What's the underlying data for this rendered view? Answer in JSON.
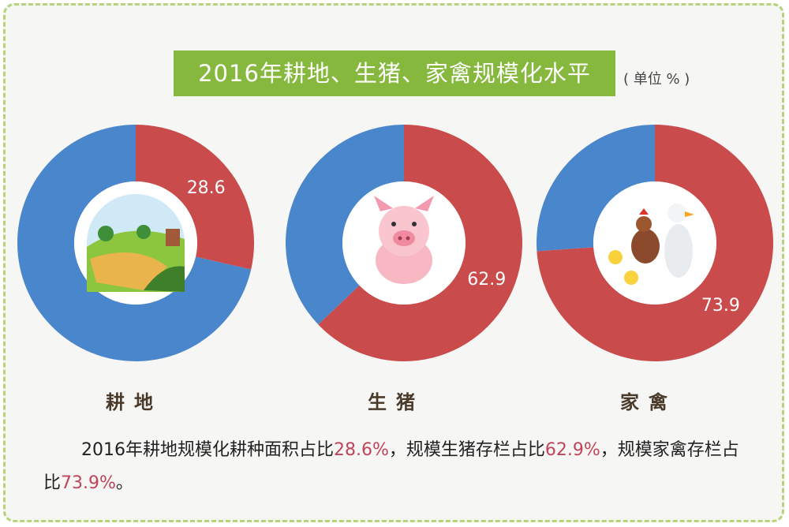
{
  "title": "2016年耕地、生猪、家禽规模化水平",
  "unit": "( 单位 % )",
  "colors": {
    "scale": "#c94b4b",
    "other": "#4a86cc",
    "title_bg": "#85b83d",
    "frame": "#b6d37a"
  },
  "chart_data": [
    {
      "type": "pie",
      "category": "耕地",
      "values": [
        28.6
      ],
      "label": "28.6",
      "icon": "farmland-icon"
    },
    {
      "type": "pie",
      "category": "生猪",
      "values": [
        62.9
      ],
      "label": "62.9",
      "icon": "pig-icon"
    },
    {
      "type": "pie",
      "category": "家禽",
      "values": [
        73.9
      ],
      "label": "73.9",
      "icon": "poultry-icon"
    }
  ],
  "caption": {
    "p1": "2016年耕地规模化耕种面积占比",
    "v1": "28.6%",
    "p2": "，规模生猪存栏占比",
    "v2": "62.9%",
    "p3": "，规模家禽存栏占比",
    "v3": "73.9%",
    "p4": "。"
  }
}
